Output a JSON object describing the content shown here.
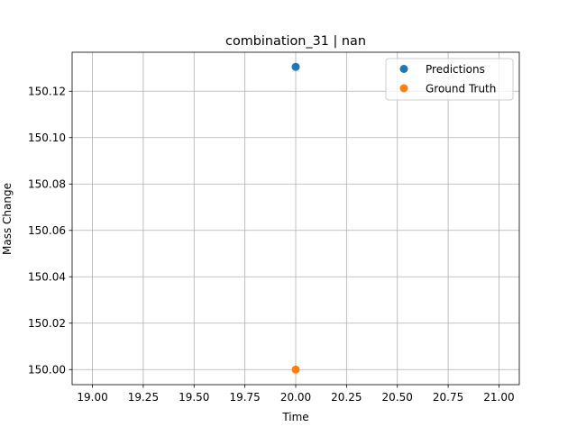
{
  "chart_data": {
    "type": "scatter",
    "title": "combination_31 | nan",
    "xlabel": "Time",
    "ylabel": "Mass Change",
    "xlim": [
      18.9,
      21.1
    ],
    "ylim": [
      149.9935,
      150.1368
    ],
    "xticks": [
      19.0,
      19.25,
      19.5,
      19.75,
      20.0,
      20.25,
      20.5,
      20.75,
      21.0
    ],
    "xtick_labels": [
      "19.00",
      "19.25",
      "19.50",
      "19.75",
      "20.00",
      "20.25",
      "20.50",
      "20.75",
      "21.00"
    ],
    "yticks": [
      150.0,
      150.02,
      150.04,
      150.06,
      150.08,
      150.1,
      150.12
    ],
    "ytick_labels": [
      "150.00",
      "150.02",
      "150.04",
      "150.06",
      "150.08",
      "150.10",
      "150.12"
    ],
    "grid": true,
    "legend_position": "top-right",
    "series": [
      {
        "name": "Predictions",
        "color": "#1f77b4",
        "points": [
          {
            "x": 20.0,
            "y": 150.1305
          }
        ]
      },
      {
        "name": "Ground Truth",
        "color": "#ff7f0e",
        "points": [
          {
            "x": 20.0,
            "y": 150.0
          }
        ]
      }
    ]
  }
}
